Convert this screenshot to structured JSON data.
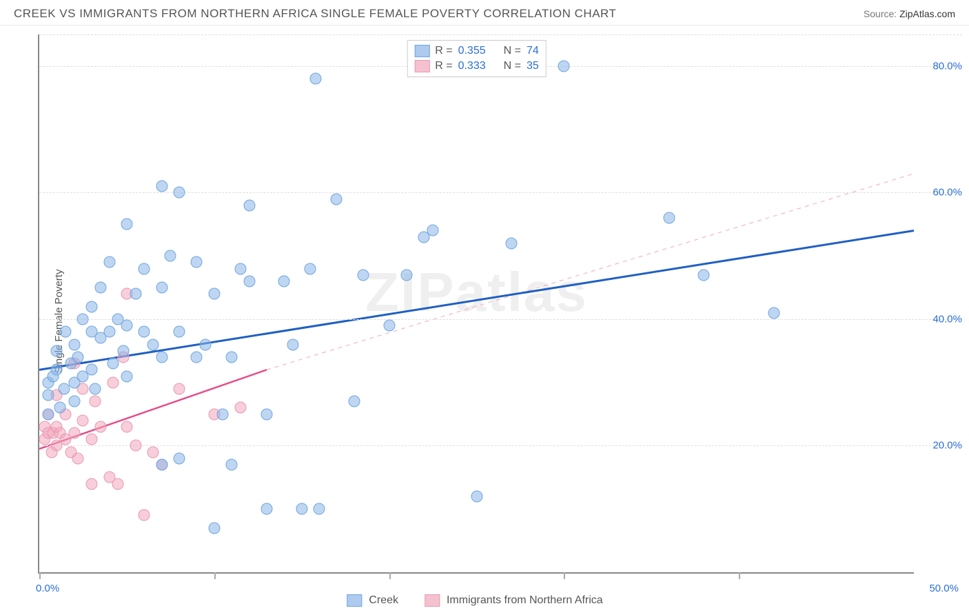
{
  "header": {
    "title": "CREEK VS IMMIGRANTS FROM NORTHERN AFRICA SINGLE FEMALE POVERTY CORRELATION CHART",
    "source_label": "Source:",
    "source_value": "ZipAtlas.com"
  },
  "axes": {
    "ylabel": "Single Female Poverty",
    "xlim": [
      0,
      50
    ],
    "ylim": [
      0,
      85
    ],
    "x_ticks": [
      0,
      10,
      20,
      30,
      40
    ],
    "x_tick_labels": {
      "min": "0.0%",
      "max": "50.0%"
    },
    "y_gridlines": [
      20,
      40,
      60,
      80
    ],
    "y_labels": [
      "20.0%",
      "40.0%",
      "60.0%",
      "80.0%"
    ],
    "grid_color": "#dddddd",
    "axis_color": "#888888",
    "tick_label_color": "#2b6fd8"
  },
  "watermark": "ZIPatlas",
  "legend_top": {
    "rows": [
      {
        "color": "blue",
        "r_label": "R =",
        "r_value": "0.355",
        "n_label": "N =",
        "n_value": "74"
      },
      {
        "color": "pink",
        "r_label": "R =",
        "r_value": "0.333",
        "n_label": "N =",
        "n_value": "35"
      }
    ]
  },
  "legend_bottom": {
    "items": [
      {
        "color": "blue",
        "label": "Creek"
      },
      {
        "color": "pink",
        "label": "Immigrants from Northern Africa"
      }
    ]
  },
  "series": {
    "blue": {
      "color_fill": "rgba(139,180,232,0.55)",
      "color_stroke": "#6ea5e0",
      "trend": {
        "x1": 0,
        "y1": 32,
        "x2": 50,
        "y2": 54,
        "color": "#1f5fc4",
        "width": 3,
        "style": "solid"
      },
      "trend_ext": null,
      "points": [
        [
          0.5,
          25
        ],
        [
          0.5,
          28
        ],
        [
          0.5,
          30
        ],
        [
          0.8,
          31
        ],
        [
          1,
          32
        ],
        [
          1,
          35
        ],
        [
          1.2,
          26
        ],
        [
          1.4,
          29
        ],
        [
          1.5,
          38
        ],
        [
          1.8,
          33
        ],
        [
          2,
          27
        ],
        [
          2,
          30
        ],
        [
          2,
          36
        ],
        [
          2.2,
          34
        ],
        [
          2.5,
          40
        ],
        [
          2.5,
          31
        ],
        [
          3,
          32
        ],
        [
          3,
          38
        ],
        [
          3,
          42
        ],
        [
          3.2,
          29
        ],
        [
          3.5,
          37
        ],
        [
          3.5,
          45
        ],
        [
          4,
          38
        ],
        [
          4,
          49
        ],
        [
          4.2,
          33
        ],
        [
          4.5,
          40
        ],
        [
          4.8,
          35
        ],
        [
          5,
          31
        ],
        [
          5,
          39
        ],
        [
          5,
          55
        ],
        [
          5.5,
          44
        ],
        [
          6,
          38
        ],
        [
          6,
          48
        ],
        [
          6.5,
          36
        ],
        [
          7,
          34
        ],
        [
          7,
          45
        ],
        [
          7,
          61
        ],
        [
          7.5,
          50
        ],
        [
          8,
          38
        ],
        [
          8,
          60
        ],
        [
          8,
          18
        ],
        [
          9,
          34
        ],
        [
          9,
          49
        ],
        [
          9.5,
          36
        ],
        [
          10,
          44
        ],
        [
          10,
          7
        ],
        [
          10.5,
          25
        ],
        [
          11,
          34
        ],
        [
          11.5,
          48
        ],
        [
          12,
          46
        ],
        [
          12,
          58
        ],
        [
          13,
          10
        ],
        [
          13,
          25
        ],
        [
          14,
          46
        ],
        [
          14.5,
          36
        ],
        [
          15,
          10
        ],
        [
          15.5,
          48
        ],
        [
          15.8,
          78
        ],
        [
          16,
          10
        ],
        [
          17,
          59
        ],
        [
          18,
          27
        ],
        [
          18.5,
          47
        ],
        [
          20,
          39
        ],
        [
          21,
          47
        ],
        [
          22,
          53
        ],
        [
          22.5,
          54
        ],
        [
          25,
          12
        ],
        [
          27,
          52
        ],
        [
          30,
          80
        ],
        [
          36,
          56
        ],
        [
          38,
          47
        ],
        [
          42,
          41
        ],
        [
          11,
          17
        ],
        [
          7,
          17
        ]
      ]
    },
    "pink": {
      "color_fill": "rgba(242,166,187,0.55)",
      "color_stroke": "#e898b2",
      "trend": {
        "x1": 0,
        "y1": 19.5,
        "x2": 13,
        "y2": 32,
        "color": "#e64d8a",
        "width": 2.5,
        "style": "solid"
      },
      "trend_ext": {
        "x1": 13,
        "y1": 32,
        "x2": 50,
        "y2": 63,
        "color": "#f4a6bd",
        "width": 1,
        "style": "dashed"
      },
      "points": [
        [
          0.3,
          21
        ],
        [
          0.3,
          23
        ],
        [
          0.5,
          22
        ],
        [
          0.5,
          25
        ],
        [
          0.7,
          19
        ],
        [
          0.8,
          22
        ],
        [
          1,
          20
        ],
        [
          1,
          23
        ],
        [
          1,
          28
        ],
        [
          1.2,
          22
        ],
        [
          1.5,
          21
        ],
        [
          1.5,
          25
        ],
        [
          1.8,
          19
        ],
        [
          2,
          22
        ],
        [
          2,
          33
        ],
        [
          2.2,
          18
        ],
        [
          2.5,
          24
        ],
        [
          2.5,
          29
        ],
        [
          3,
          21
        ],
        [
          3,
          14
        ],
        [
          3.2,
          27
        ],
        [
          3.5,
          23
        ],
        [
          4,
          15
        ],
        [
          4.2,
          30
        ],
        [
          4.5,
          14
        ],
        [
          4.8,
          34
        ],
        [
          5,
          23
        ],
        [
          5,
          44
        ],
        [
          5.5,
          20
        ],
        [
          6,
          9
        ],
        [
          6.5,
          19
        ],
        [
          7,
          17
        ],
        [
          8,
          29
        ],
        [
          10,
          25
        ],
        [
          11.5,
          26
        ]
      ]
    }
  },
  "style": {
    "background_color": "#ffffff",
    "title_fontsize": 17,
    "label_fontsize": 15,
    "point_radius": 8.5
  }
}
